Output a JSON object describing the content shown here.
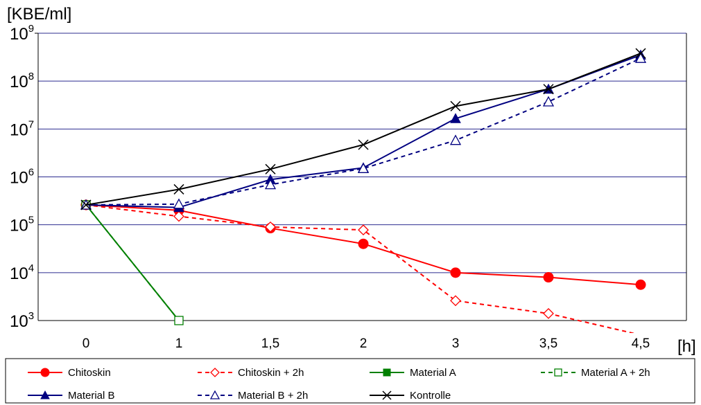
{
  "chart_data": {
    "type": "line",
    "title": "",
    "ylabel": "[KBE/ml]",
    "xlabel": "[h]",
    "categories": [
      "0",
      "1",
      "1,5",
      "2",
      "3",
      "3,5",
      "4,5"
    ],
    "y_scale": "log",
    "ylim": [
      1000,
      1000000000
    ],
    "y_ticks": [
      {
        "base": "10",
        "exp": "3",
        "value": 1000
      },
      {
        "base": "10",
        "exp": "4",
        "value": 10000
      },
      {
        "base": "10",
        "exp": "5",
        "value": 100000
      },
      {
        "base": "10",
        "exp": "6",
        "value": 1000000
      },
      {
        "base": "10",
        "exp": "7",
        "value": 10000000
      },
      {
        "base": "10",
        "exp": "8",
        "value": 100000000
      },
      {
        "base": "10",
        "exp": "9",
        "value": 1000000000
      }
    ],
    "grid": "horizontal",
    "legend_position": "bottom",
    "series": [
      {
        "name": "Chitoskin",
        "color": "#ff0000",
        "dashed": false,
        "marker": "circle-filled",
        "values": [
          260000,
          200000,
          85000,
          40000,
          10000,
          8000,
          5600
        ]
      },
      {
        "name": "Chitoskin + 2h",
        "color": "#ff0000",
        "dashed": true,
        "marker": "diamond-open",
        "values": [
          260000,
          150000,
          90000,
          78000,
          2600,
          1400,
          500
        ]
      },
      {
        "name": "Material A",
        "color": "#008000",
        "dashed": false,
        "marker": "square-filled",
        "values": [
          260000,
          1000,
          null,
          null,
          null,
          null,
          null
        ]
      },
      {
        "name": "Material A + 2h",
        "color": "#008000",
        "dashed": true,
        "marker": "square-open",
        "values": [
          260000,
          1000,
          null,
          null,
          null,
          null,
          null
        ]
      },
      {
        "name": "Material B",
        "color": "#000080",
        "dashed": false,
        "marker": "triangle-filled",
        "values": [
          260000,
          230000,
          880000,
          1550000,
          16500000,
          68000000,
          350000000
        ]
      },
      {
        "name": "Material B + 2h",
        "color": "#000080",
        "dashed": true,
        "marker": "triangle-open",
        "values": [
          260000,
          270000,
          690000,
          1500000,
          5800000,
          37000000,
          300000000
        ]
      },
      {
        "name": "Kontrolle",
        "color": "#000000",
        "dashed": false,
        "marker": "x",
        "values": [
          260000,
          550000,
          1450000,
          4700000,
          30000000,
          68000000,
          380000000
        ]
      }
    ]
  }
}
